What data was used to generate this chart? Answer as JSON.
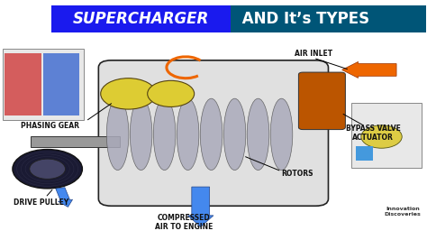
{
  "title_part1": "SUPERCHARGER",
  "title_part2": " AND It’s TYPES",
  "bg_color": "#ffffff",
  "title_bg1": "#1a1aee",
  "title_bg2": "#005577",
  "title_color": "#ffffff",
  "labels": {
    "air_inlet": "AIR INLET",
    "bypass_valve": "BYPASS VALVE\nACTUATOR",
    "rotors": "ROTORS",
    "compressed": "COMPRESSED\nAIR TO ENGINE",
    "phasing_gear": "PHASING GEAR",
    "drive_pulley": "DRIVE PULLEY"
  },
  "arrow_color_blue": "#4488ee",
  "arrow_color_orange": "#ee6600",
  "watermark": "Innovation\nDiscoveries",
  "label_fontsize": 5.5,
  "figsize": [
    4.74,
    2.66
  ],
  "dpi": 100
}
